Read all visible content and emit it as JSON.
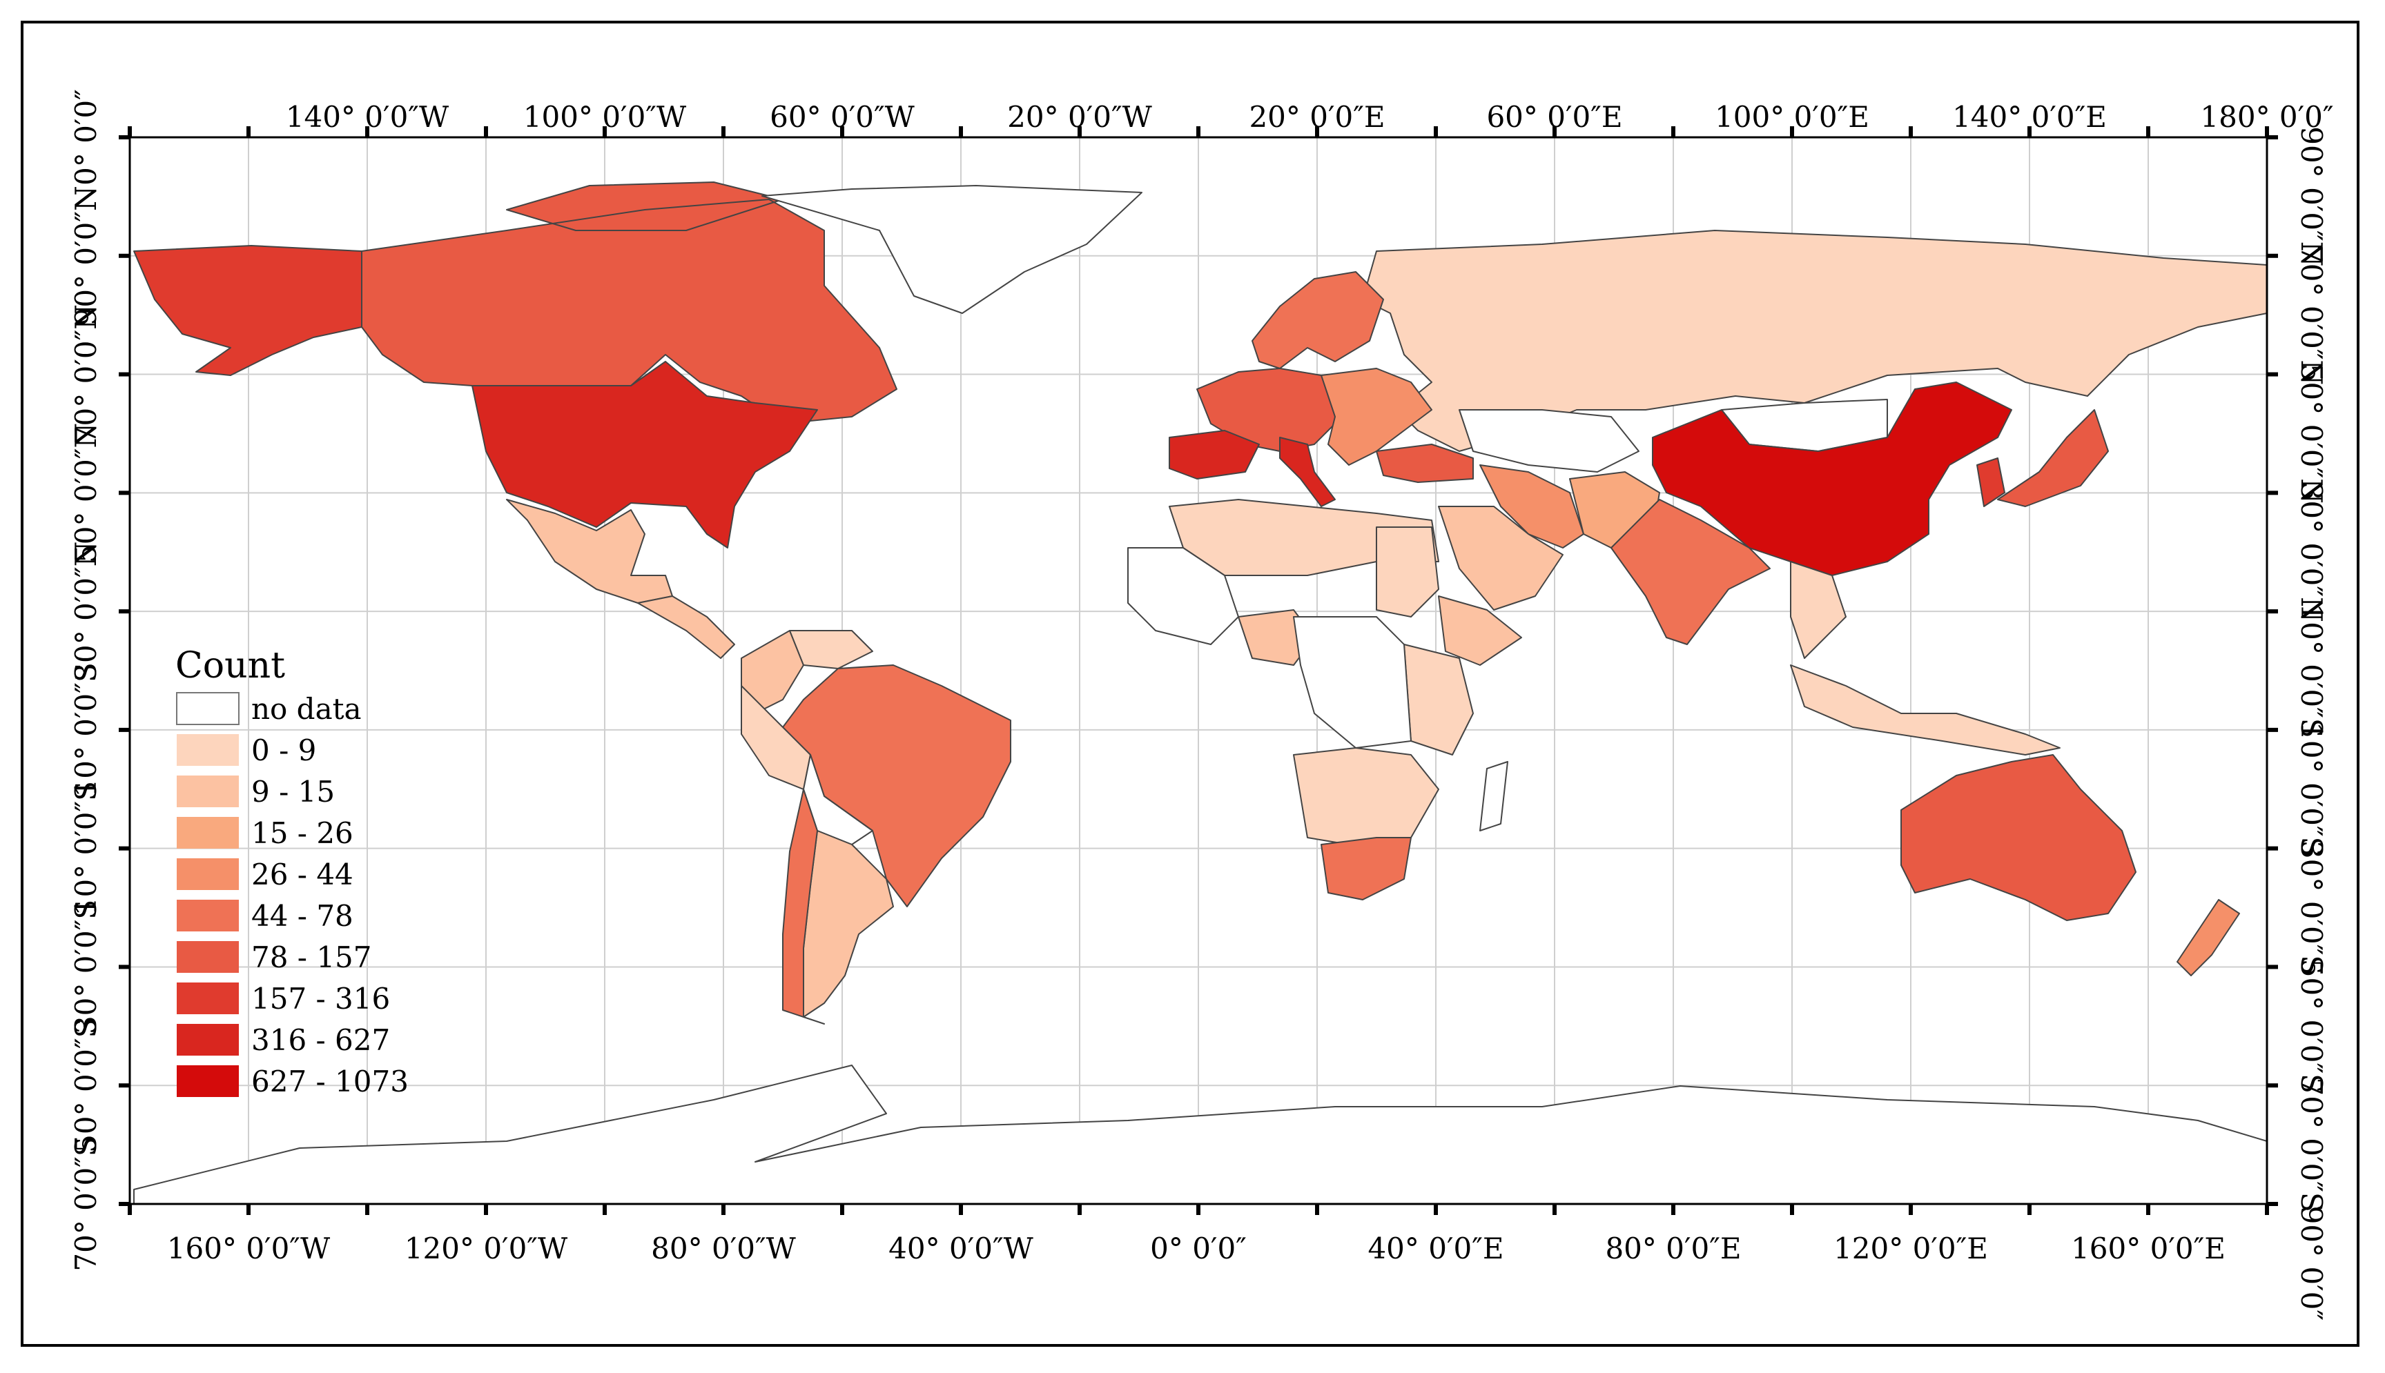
{
  "map": {
    "top_axis_labels": [
      "140° 0′0″W",
      "100° 0′0″W",
      "60° 0′0″W",
      "20° 0′0″W",
      "20° 0′0″E",
      "60° 0′0″E",
      "100° 0′0″E",
      "140° 0′0″E",
      "180° 0′0″"
    ],
    "bottom_axis_labels": [
      "160° 0′0″W",
      "120° 0′0″W",
      "80° 0′0″W",
      "40° 0′0″W",
      "0° 0′0″",
      "40° 0′0″E",
      "80° 0′0″E",
      "120° 0′0″E",
      "160° 0′0″E"
    ],
    "left_axis_labels": [
      "0° 0′0″",
      "90° 0′0″N",
      "70° 0′0″N",
      "50° 0′0″N",
      "30° 0′0″N",
      "10° 0′0″S",
      "10° 0′0″S",
      "30° 0′0″S",
      "50° 0′0″S",
      "70° 0′0″S"
    ],
    "right_axis_labels": [
      "90° 0′0″N",
      "70° 0′0″N",
      "50° 0′0″N",
      "30° 0′0″N",
      "10° 0′0″S",
      "10° 0′0″S",
      "30° 0′0″S",
      "50° 0′0″S",
      "70° 0′0″S",
      "90° 0′0″"
    ],
    "legend": {
      "title": "Count",
      "items": [
        {
          "label": "no data",
          "color": "#ffffff"
        },
        {
          "label": "0 - 9",
          "color": "#fdd5bd"
        },
        {
          "label": "9 - 15",
          "color": "#fcc2a2"
        },
        {
          "label": "15 - 26",
          "color": "#f9a97e"
        },
        {
          "label": "26 - 44",
          "color": "#f59069"
        },
        {
          "label": "44 - 78",
          "color": "#ef7255"
        },
        {
          "label": "78 - 157",
          "color": "#e85a44"
        },
        {
          "label": "157 - 316",
          "color": "#e03b2e"
        },
        {
          "label": "316 - 627",
          "color": "#d9261f"
        },
        {
          "label": "627 - 1073",
          "color": "#d40b0b"
        }
      ]
    },
    "regions": [
      {
        "name": "alaska",
        "class": 7
      },
      {
        "name": "canada",
        "class": 6
      },
      {
        "name": "usa",
        "class": 8
      },
      {
        "name": "greenland",
        "class": 0
      },
      {
        "name": "mexico",
        "class": 2
      },
      {
        "name": "central-america",
        "class": 2
      },
      {
        "name": "colombia",
        "class": 2
      },
      {
        "name": "venezuela",
        "class": 1
      },
      {
        "name": "brazil",
        "class": 5
      },
      {
        "name": "peru",
        "class": 1
      },
      {
        "name": "bolivia",
        "class": 0
      },
      {
        "name": "argentina",
        "class": 2
      },
      {
        "name": "chile",
        "class": 5
      },
      {
        "name": "russia",
        "class": 1
      },
      {
        "name": "scandinavia",
        "class": 5
      },
      {
        "name": "western-europe",
        "class": 6
      },
      {
        "name": "iberia",
        "class": 8
      },
      {
        "name": "italy",
        "class": 8
      },
      {
        "name": "eastern-europe",
        "class": 4
      },
      {
        "name": "turkey",
        "class": 6
      },
      {
        "name": "kazakhstan",
        "class": 0
      },
      {
        "name": "mongolia",
        "class": 0
      },
      {
        "name": "china",
        "class": 9
      },
      {
        "name": "japan",
        "class": 6
      },
      {
        "name": "korea",
        "class": 7
      },
      {
        "name": "iran",
        "class": 4
      },
      {
        "name": "saudi-arabia",
        "class": 2
      },
      {
        "name": "pakistan",
        "class": 3
      },
      {
        "name": "india",
        "class": 5
      },
      {
        "name": "southeast-asia",
        "class": 1
      },
      {
        "name": "indonesia",
        "class": 1
      },
      {
        "name": "north-africa",
        "class": 1
      },
      {
        "name": "west-africa",
        "class": 0
      },
      {
        "name": "nigeria",
        "class": 2
      },
      {
        "name": "sudan",
        "class": 1
      },
      {
        "name": "ethiopia",
        "class": 2
      },
      {
        "name": "east-africa",
        "class": 1
      },
      {
        "name": "central-africa",
        "class": 0
      },
      {
        "name": "southern-africa",
        "class": 1
      },
      {
        "name": "south-africa",
        "class": 5
      },
      {
        "name": "madagascar",
        "class": 0
      },
      {
        "name": "australia",
        "class": 6
      },
      {
        "name": "new-zealand",
        "class": 4
      },
      {
        "name": "antarctica",
        "class": 0
      }
    ]
  }
}
